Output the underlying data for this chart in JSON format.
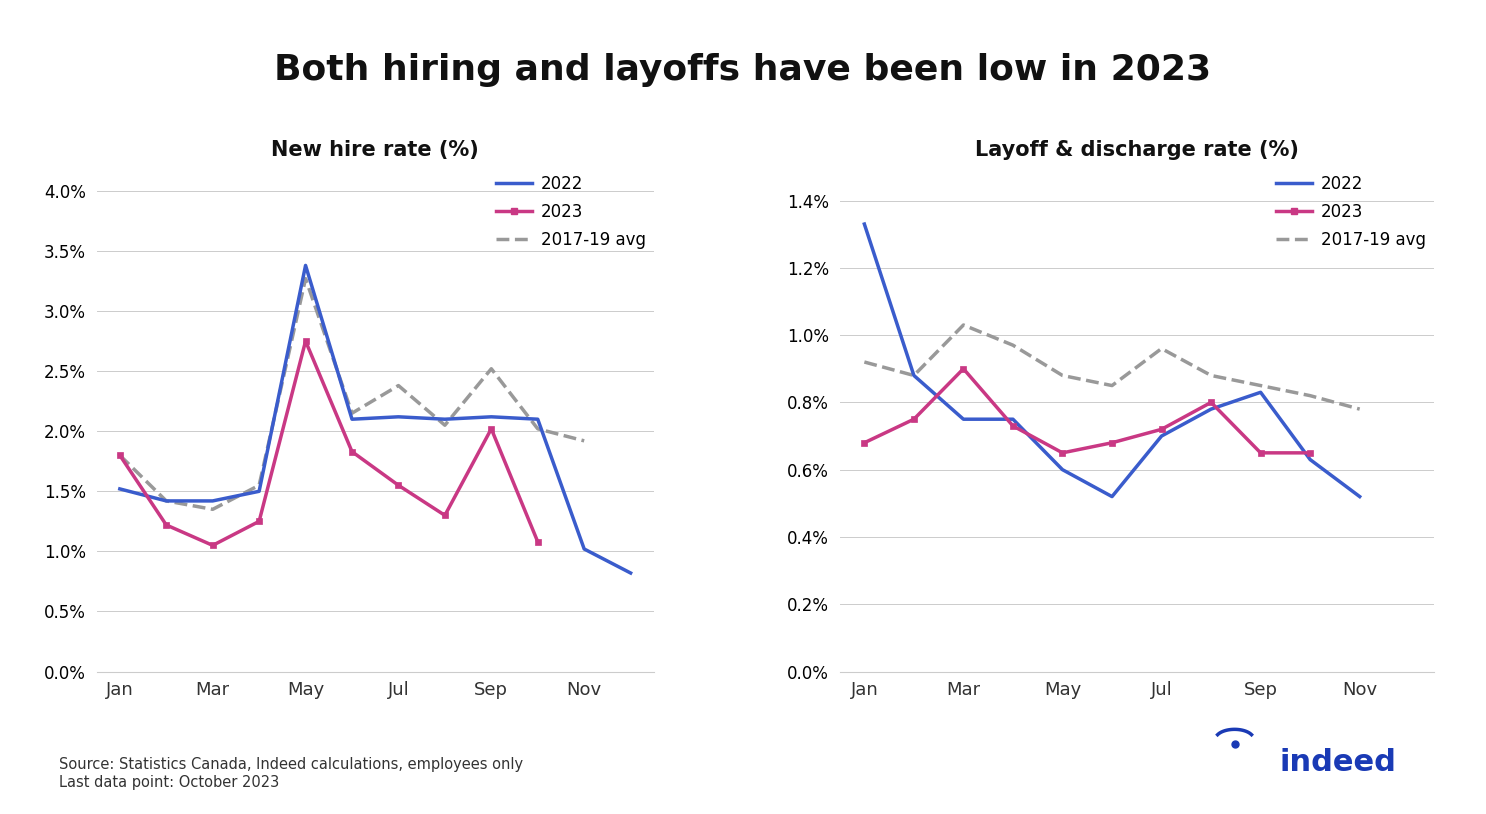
{
  "title": "Both hiring and layoffs have been low in 2023",
  "title_fontsize": 26,
  "title_fontweight": "bold",
  "left_panel_title": "New hire rate (%)",
  "right_panel_title": "Layoff & discharge rate (%)",
  "x_ticks": [
    "Jan",
    "Mar",
    "May",
    "Jul",
    "Sep",
    "Nov"
  ],
  "hire_2022": [
    1.52,
    1.42,
    1.42,
    1.5,
    3.38,
    2.1,
    2.12,
    2.1,
    2.12,
    2.1,
    1.02,
    0.82
  ],
  "hire_2023": [
    1.8,
    1.22,
    1.05,
    1.25,
    2.75,
    1.83,
    1.55,
    1.3,
    2.02,
    1.08,
    null,
    null
  ],
  "hire_avg": [
    1.8,
    1.42,
    1.35,
    1.55,
    3.27,
    2.15,
    2.38,
    2.05,
    2.52,
    2.02,
    1.92,
    null
  ],
  "layoff_2022": [
    1.33,
    null,
    null,
    null,
    null,
    null,
    null,
    null,
    null,
    null,
    null,
    null
  ],
  "layoff_2022_rest": [
    null,
    0.88,
    0.75,
    0.75,
    0.6,
    0.52,
    0.7,
    0.78,
    0.83,
    0.63,
    0.52,
    null
  ],
  "layoff_2023": [
    0.68,
    0.75,
    0.9,
    0.73,
    0.65,
    0.68,
    0.72,
    0.8,
    0.65,
    0.65,
    null,
    null
  ],
  "layoff_avg": [
    0.92,
    0.88,
    1.03,
    0.97,
    0.88,
    0.85,
    0.96,
    0.88,
    0.85,
    0.82,
    0.78,
    null
  ],
  "color_2022": "#3a5ccc",
  "color_2023": "#c93884",
  "color_avg": "#999999",
  "line_width": 2.5,
  "source_text": "Source: Statistics Canada, Indeed calculations, employees only\nLast data point: October 2023",
  "background_color": "#ffffff",
  "left_ylim": [
    0.0,
    0.042
  ],
  "right_ylim": [
    0.0,
    0.015
  ],
  "left_yticks": [
    0.0,
    0.005,
    0.01,
    0.015,
    0.02,
    0.025,
    0.03,
    0.035,
    0.04
  ],
  "right_yticks": [
    0.0,
    0.002,
    0.004,
    0.006,
    0.008,
    0.01,
    0.012,
    0.014
  ]
}
